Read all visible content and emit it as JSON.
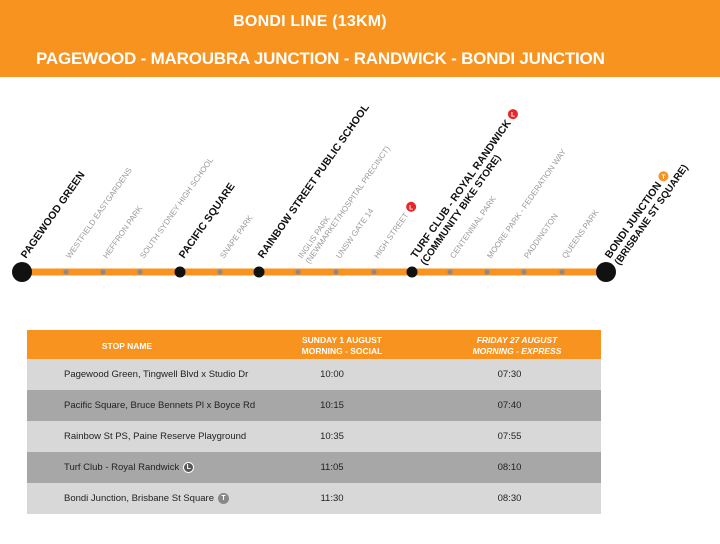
{
  "header": {
    "title": "BONDI LINE (13KM)",
    "route": "PAGEWOOD - MAROUBRA JUNCTION - RANDWICK -  BONDI JUNCTION"
  },
  "colors": {
    "accent": "#f7931e",
    "light_rail": "#e8272a",
    "train": "#f7931e",
    "row_light": "#d8d8d8",
    "row_dark": "#a7a7a7"
  },
  "stops": [
    {
      "label": "PAGEWOOD GREEN",
      "major": true
    },
    {
      "label": "WESTFIELD EASTGARDENS",
      "major": false
    },
    {
      "label": "HEFFRON PARK",
      "major": false
    },
    {
      "label": "SOUTH SYDNEY HIGH SCHOOL",
      "major": false
    },
    {
      "label": "PACIFIC SQUARE",
      "major": true
    },
    {
      "label": "SNAPE PARK",
      "major": false
    },
    {
      "label": "RAINBOW STREET PUBLIC SCHOOL",
      "major": true
    },
    {
      "label": "INGLIS PARK",
      "label2": "(NEWMARKET/HOSPITAL PRECINCT)",
      "major": false
    },
    {
      "label": "UNSW GATE 14",
      "major": false
    },
    {
      "label": "HIGH STREET",
      "major": false,
      "icon": "light-rail-icon"
    },
    {
      "label": "TURF CLUB - ROYAL RANDWICK",
      "label2": "(COMMUNITY BIKE STORE)",
      "major": true,
      "icon": "light-rail-icon"
    },
    {
      "label": "CENTENNIAL PARK",
      "major": false
    },
    {
      "label": "MOORE PARK - FEDERATION WAY",
      "major": false
    },
    {
      "label": "PADDINGTON",
      "major": false
    },
    {
      "label": "QUEENS PARK",
      "major": false
    },
    {
      "label": "BONDI JUNCTION",
      "label2": "(BRISBANE ST SQUARE)",
      "major": true,
      "icon": "train-icon"
    }
  ],
  "icons": {
    "light_rail_glyph": "L",
    "train_glyph": "T"
  },
  "table": {
    "headers": {
      "stop": "STOP NAME",
      "day1_line1": "SUNDAY 1 AUGUST",
      "day1_line2": "MORNING - SOCIAL",
      "day2_line1": "FRIDAY 27 AUGUST",
      "day2_line2": "MORNING - EXPRESS"
    },
    "rows": [
      {
        "stop": "Pagewood Green, Tingwell Blvd x Studio Dr",
        "t1": "10:00",
        "t2": "07:30"
      },
      {
        "stop": "Pacific Square, Bruce Bennets Pl x Boyce Rd",
        "t1": "10:15",
        "t2": "07:40"
      },
      {
        "stop": "Rainbow St PS, Paine Reserve Playground",
        "t1": "10:35",
        "t2": "07:55"
      },
      {
        "stop": "Turf Club - Royal Randwick",
        "icon": "light-rail-icon",
        "t1": "11:05",
        "t2": "08:10"
      },
      {
        "stop": "Bondi Junction, Brisbane St Square",
        "icon": "train-icon",
        "t1": "11:30",
        "t2": "08:30"
      }
    ]
  }
}
